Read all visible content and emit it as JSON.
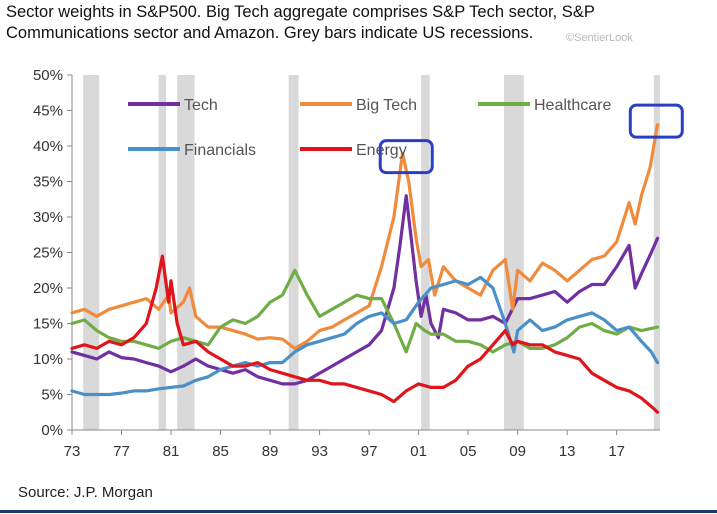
{
  "header": {
    "title": "Sector weights in S&P500. Big Tech aggregate comprises S&P Tech sector, S&P Communications sector and Amazon.  Grey bars indicate US recessions.",
    "watermark": "©SentierLook"
  },
  "footer": {
    "source": "Source: J.P. Morgan"
  },
  "colors": {
    "tech": "#7030a0",
    "big_tech": "#f08a3c",
    "healthcare": "#70ad47",
    "financials": "#4a90c8",
    "energy": "#e0151b",
    "recession": "#d9d9d9",
    "annotation_box": "#2b3fc4"
  },
  "chart_data": {
    "type": "line",
    "title": "Sector weights in S&P500. Big Tech aggregate comprises S&P Tech sector, S&P Communications sector and Amazon.  Grey bars indicate US recessions.",
    "xlabel": "",
    "ylabel": "",
    "xlim": [
      1973,
      2020.5
    ],
    "ylim": [
      0,
      50
    ],
    "x_ticks": [
      1973,
      1977,
      1981,
      1985,
      1989,
      1993,
      1997,
      2001,
      2005,
      2009,
      2013,
      2017
    ],
    "x_tick_labels": [
      "73",
      "77",
      "81",
      "85",
      "89",
      "93",
      "97",
      "01",
      "05",
      "09",
      "13",
      "17"
    ],
    "y_ticks": [
      0,
      5,
      10,
      15,
      20,
      25,
      30,
      35,
      40,
      45,
      50
    ],
    "y_tick_labels": [
      "0%",
      "5%",
      "10%",
      "15%",
      "20%",
      "25%",
      "30%",
      "35%",
      "40%",
      "45%",
      "50%"
    ],
    "grid": false,
    "legend": "top, inside plot, 3 columns",
    "recessions": [
      [
        1973.9,
        1975.2
      ],
      [
        1980.0,
        1980.6
      ],
      [
        1981.5,
        1982.9
      ],
      [
        1990.5,
        1991.3
      ],
      [
        2001.2,
        2001.9
      ],
      [
        2007.9,
        2009.5
      ],
      [
        2020.0,
        2020.5
      ]
    ],
    "series": [
      {
        "name": "Tech",
        "color": "#7030a0",
        "points": [
          [
            1973,
            11
          ],
          [
            1974,
            10.5
          ],
          [
            1975,
            10
          ],
          [
            1976,
            11
          ],
          [
            1977,
            10.2
          ],
          [
            1978,
            10
          ],
          [
            1979,
            9.5
          ],
          [
            1980,
            9
          ],
          [
            1981,
            8.2
          ],
          [
            1982,
            9
          ],
          [
            1983,
            10
          ],
          [
            1984,
            9
          ],
          [
            1985,
            8.5
          ],
          [
            1986,
            8
          ],
          [
            1987,
            8.5
          ],
          [
            1988,
            7.5
          ],
          [
            1989,
            7
          ],
          [
            1990,
            6.5
          ],
          [
            1991,
            6.5
          ],
          [
            1992,
            7
          ],
          [
            1993,
            8
          ],
          [
            1994,
            9
          ],
          [
            1995,
            10
          ],
          [
            1996,
            11
          ],
          [
            1997,
            12
          ],
          [
            1998,
            14
          ],
          [
            1999,
            20
          ],
          [
            1999.5,
            26
          ],
          [
            2000,
            33
          ],
          [
            2000.4,
            27
          ],
          [
            2000.8,
            21
          ],
          [
            2001.2,
            16
          ],
          [
            2001.6,
            19
          ],
          [
            2002,
            15
          ],
          [
            2002.6,
            13
          ],
          [
            2003,
            17
          ],
          [
            2004,
            16.5
          ],
          [
            2005,
            15.5
          ],
          [
            2006,
            15.5
          ],
          [
            2007,
            16
          ],
          [
            2008,
            15
          ],
          [
            2009,
            18.5
          ],
          [
            2010,
            18.5
          ],
          [
            2011,
            19
          ],
          [
            2012,
            19.5
          ],
          [
            2013,
            18
          ],
          [
            2014,
            19.5
          ],
          [
            2015,
            20.5
          ],
          [
            2016,
            20.5
          ],
          [
            2017,
            23
          ],
          [
            2018,
            26
          ],
          [
            2018.5,
            20
          ],
          [
            2019,
            22
          ],
          [
            2019.8,
            25
          ],
          [
            2020.3,
            27
          ]
        ]
      },
      {
        "name": "Big Tech",
        "color": "#f08a3c",
        "points": [
          [
            1973,
            16.5
          ],
          [
            1974,
            17
          ],
          [
            1975,
            16
          ],
          [
            1976,
            17
          ],
          [
            1977,
            17.5
          ],
          [
            1978,
            18
          ],
          [
            1979,
            18.5
          ],
          [
            1980,
            17
          ],
          [
            1980.8,
            19
          ],
          [
            1981,
            16.5
          ],
          [
            1982,
            18
          ],
          [
            1982.5,
            20
          ],
          [
            1983,
            16
          ],
          [
            1984,
            14.5
          ],
          [
            1985,
            14.5
          ],
          [
            1986,
            14
          ],
          [
            1987,
            13.5
          ],
          [
            1988,
            12.8
          ],
          [
            1989,
            13
          ],
          [
            1990,
            12.8
          ],
          [
            1991,
            11.5
          ],
          [
            1992,
            12.5
          ],
          [
            1993,
            14
          ],
          [
            1994,
            14.5
          ],
          [
            1995,
            15.5
          ],
          [
            1996,
            16.5
          ],
          [
            1997,
            17.5
          ],
          [
            1998,
            23
          ],
          [
            1999,
            30
          ],
          [
            1999.7,
            39
          ],
          [
            2000.2,
            35
          ],
          [
            2000.8,
            27
          ],
          [
            2001.2,
            23
          ],
          [
            2001.8,
            24
          ],
          [
            2002.3,
            19
          ],
          [
            2003,
            23
          ],
          [
            2004,
            21
          ],
          [
            2005,
            20
          ],
          [
            2006,
            19
          ],
          [
            2007,
            22.5
          ],
          [
            2008,
            24
          ],
          [
            2008.6,
            17
          ],
          [
            2009,
            22.5
          ],
          [
            2010,
            21
          ],
          [
            2011,
            23.5
          ],
          [
            2012,
            22.5
          ],
          [
            2013,
            21
          ],
          [
            2014,
            22.5
          ],
          [
            2015,
            24
          ],
          [
            2016,
            24.5
          ],
          [
            2017,
            26.5
          ],
          [
            2018,
            32
          ],
          [
            2018.5,
            29
          ],
          [
            2019,
            33
          ],
          [
            2019.7,
            37
          ],
          [
            2020.3,
            43
          ]
        ]
      },
      {
        "name": "Healthcare",
        "color": "#70ad47",
        "points": [
          [
            1973,
            15
          ],
          [
            1974,
            15.5
          ],
          [
            1975,
            14
          ],
          [
            1976,
            13
          ],
          [
            1977,
            12.5
          ],
          [
            1978,
            12.5
          ],
          [
            1979,
            12
          ],
          [
            1980,
            11.5
          ],
          [
            1981,
            12.5
          ],
          [
            1982,
            13
          ],
          [
            1983,
            12.5
          ],
          [
            1984,
            12
          ],
          [
            1985,
            14.5
          ],
          [
            1986,
            15.5
          ],
          [
            1987,
            15
          ],
          [
            1988,
            16
          ],
          [
            1989,
            18
          ],
          [
            1990,
            19
          ],
          [
            1991,
            22.5
          ],
          [
            1992,
            19
          ],
          [
            1993,
            16
          ],
          [
            1994,
            17
          ],
          [
            1995,
            18
          ],
          [
            1996,
            19
          ],
          [
            1997,
            18.5
          ],
          [
            1998,
            18.5
          ],
          [
            1999,
            15
          ],
          [
            2000,
            11
          ],
          [
            2000.8,
            15
          ],
          [
            2001.5,
            14
          ],
          [
            2002,
            13.5
          ],
          [
            2003,
            13.5
          ],
          [
            2004,
            12.5
          ],
          [
            2005,
            12.5
          ],
          [
            2006,
            12
          ],
          [
            2007,
            11
          ],
          [
            2008,
            12
          ],
          [
            2009,
            12.5
          ],
          [
            2010,
            11.5
          ],
          [
            2011,
            11.5
          ],
          [
            2012,
            12
          ],
          [
            2013,
            13
          ],
          [
            2014,
            14.5
          ],
          [
            2015,
            15
          ],
          [
            2016,
            14
          ],
          [
            2017,
            13.5
          ],
          [
            2018,
            14.5
          ],
          [
            2019,
            14
          ],
          [
            2020.3,
            14.5
          ]
        ]
      },
      {
        "name": "Financials",
        "color": "#4a90c8",
        "points": [
          [
            1973,
            5.5
          ],
          [
            1974,
            5
          ],
          [
            1975,
            5
          ],
          [
            1976,
            5
          ],
          [
            1977,
            5.2
          ],
          [
            1978,
            5.5
          ],
          [
            1979,
            5.5
          ],
          [
            1980,
            5.8
          ],
          [
            1981,
            6
          ],
          [
            1982,
            6.2
          ],
          [
            1983,
            7
          ],
          [
            1984,
            7.5
          ],
          [
            1985,
            8.5
          ],
          [
            1986,
            9
          ],
          [
            1987,
            9.5
          ],
          [
            1988,
            9
          ],
          [
            1989,
            9.5
          ],
          [
            1990,
            9.5
          ],
          [
            1991,
            11
          ],
          [
            1992,
            12
          ],
          [
            1993,
            12.5
          ],
          [
            1994,
            13
          ],
          [
            1995,
            13.5
          ],
          [
            1996,
            15
          ],
          [
            1997,
            16
          ],
          [
            1998,
            16.5
          ],
          [
            1999,
            15
          ],
          [
            2000,
            15.5
          ],
          [
            2001,
            18
          ],
          [
            2002,
            20
          ],
          [
            2003,
            20.5
          ],
          [
            2004,
            21
          ],
          [
            2005,
            20.5
          ],
          [
            2006,
            21.5
          ],
          [
            2007,
            20
          ],
          [
            2008,
            15
          ],
          [
            2008.7,
            11
          ],
          [
            2009,
            14
          ],
          [
            2010,
            15.5
          ],
          [
            2011,
            14
          ],
          [
            2012,
            14.5
          ],
          [
            2013,
            15.5
          ],
          [
            2014,
            16
          ],
          [
            2015,
            16.5
          ],
          [
            2016,
            15.5
          ],
          [
            2017,
            14
          ],
          [
            2018,
            14.5
          ],
          [
            2019,
            12.5
          ],
          [
            2019.8,
            11
          ],
          [
            2020.3,
            9.5
          ]
        ]
      },
      {
        "name": "Energy",
        "color": "#e0151b",
        "points": [
          [
            1973,
            11.5
          ],
          [
            1974,
            12
          ],
          [
            1975,
            11.5
          ],
          [
            1976,
            12.5
          ],
          [
            1977,
            12
          ],
          [
            1978,
            13
          ],
          [
            1979,
            15
          ],
          [
            1979.8,
            20
          ],
          [
            1980.3,
            24.5
          ],
          [
            1980.8,
            18
          ],
          [
            1981,
            21
          ],
          [
            1981.5,
            15
          ],
          [
            1982,
            12
          ],
          [
            1983,
            12.5
          ],
          [
            1984,
            11
          ],
          [
            1985,
            10
          ],
          [
            1986,
            9
          ],
          [
            1987,
            9
          ],
          [
            1988,
            9.5
          ],
          [
            1989,
            8.5
          ],
          [
            1990,
            8
          ],
          [
            1991,
            7.5
          ],
          [
            1992,
            7
          ],
          [
            1993,
            7
          ],
          [
            1994,
            6.5
          ],
          [
            1995,
            6.5
          ],
          [
            1996,
            6
          ],
          [
            1997,
            5.5
          ],
          [
            1998,
            5
          ],
          [
            1999,
            4
          ],
          [
            2000,
            5.5
          ],
          [
            2001,
            6.5
          ],
          [
            2002,
            6
          ],
          [
            2003,
            6
          ],
          [
            2004,
            7
          ],
          [
            2005,
            9
          ],
          [
            2006,
            10
          ],
          [
            2007,
            12
          ],
          [
            2008,
            14
          ],
          [
            2008.6,
            12
          ],
          [
            2009,
            12.5
          ],
          [
            2010,
            12
          ],
          [
            2011,
            12
          ],
          [
            2012,
            11
          ],
          [
            2013,
            10.5
          ],
          [
            2014,
            10
          ],
          [
            2015,
            8
          ],
          [
            2016,
            7
          ],
          [
            2017,
            6
          ],
          [
            2018,
            5.5
          ],
          [
            2019,
            4.5
          ],
          [
            2020,
            3
          ],
          [
            2020.3,
            2.5
          ]
        ]
      }
    ],
    "annotations": [
      {
        "type": "box",
        "x": 2000,
        "y": 38.5
      },
      {
        "type": "box",
        "x": 2020.2,
        "y": 43.5
      }
    ]
  }
}
